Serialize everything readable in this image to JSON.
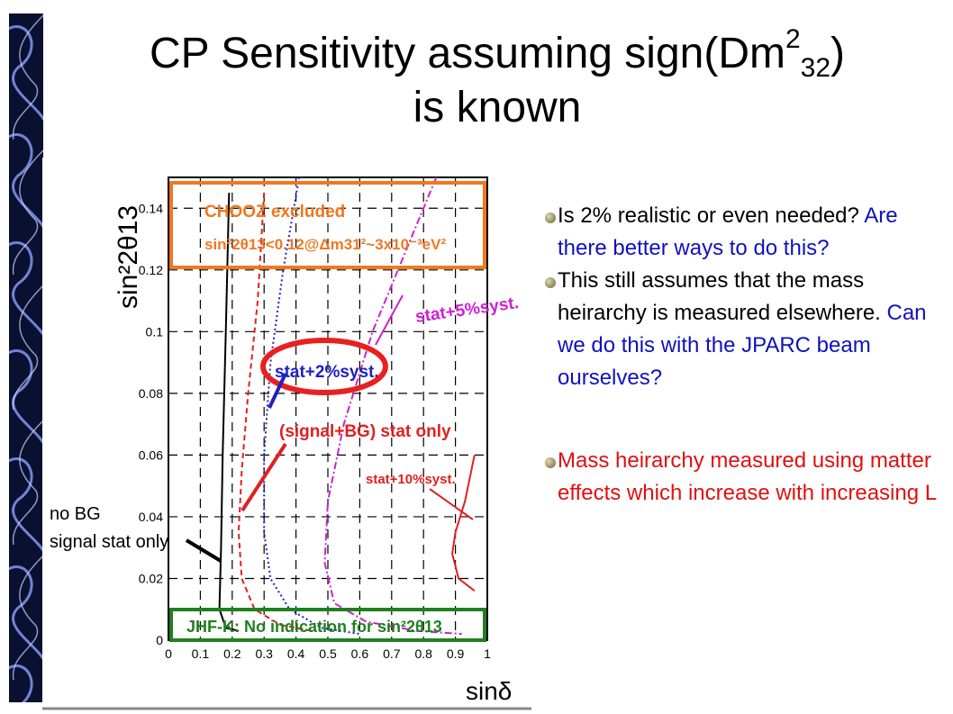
{
  "title": {
    "line1_main": "CP Sensitivity assuming sign(Dm",
    "sup": "2",
    "sub": "32",
    "close": ")",
    "line2": "is known"
  },
  "colors": {
    "strip": "#0a1030",
    "blue_text": "#1010c0",
    "red_text": "#e01010",
    "chooz_box": "#f07820",
    "jhf_box": "#208020"
  },
  "chart_data": {
    "type": "line",
    "xlabel": "sinδ",
    "ylabel": "sin²2θ13",
    "xlim": [
      0,
      1
    ],
    "ylim": [
      0,
      0.15
    ],
    "xticks": [
      "0",
      "0.1",
      "0.2",
      "0.3",
      "0.4",
      "0.5",
      "0.6",
      "0.7",
      "0.8",
      "0.9",
      "1"
    ],
    "yticks": [
      "0",
      "0.02",
      "0.04",
      "0.06",
      "0.08",
      "0.1",
      "0.12",
      "0.14"
    ],
    "grid": true,
    "annotations": {
      "chooz_line1": "CHOOZ excluded",
      "chooz_line2": "sin²2θ13<0.12@Δm31²~3x10⁻³eV²",
      "stat5": "stat+5%syst.",
      "stat2": "stat+2%syst.",
      "sigbg": "(signal+BG) stat only",
      "stat10": "stat+10%syst.",
      "nobg1": "no BG",
      "nobg2": "signal stat only",
      "jhf": "JHF-K: No indication for sin²2θ13"
    },
    "series": [
      {
        "name": "no BG signal stat only",
        "color": "#000000",
        "dash": "",
        "points": [
          [
            0.19,
            0.145
          ],
          [
            0.18,
            0.1
          ],
          [
            0.17,
            0.06
          ],
          [
            0.165,
            0.03
          ],
          [
            0.16,
            0.01
          ],
          [
            0.18,
            0.004
          ],
          [
            0.22,
            0.003
          ]
        ]
      },
      {
        "name": "(signal+BG) stat only",
        "color": "#e02020",
        "dash": "6,4",
        "points": [
          [
            0.3,
            0.145
          ],
          [
            0.28,
            0.11
          ],
          [
            0.25,
            0.08
          ],
          [
            0.23,
            0.055
          ],
          [
            0.22,
            0.035
          ],
          [
            0.23,
            0.02
          ],
          [
            0.27,
            0.01
          ],
          [
            0.35,
            0.005
          ],
          [
            0.45,
            0.003
          ]
        ]
      },
      {
        "name": "stat+2%syst.",
        "color": "#2020c0",
        "dash": "2,3",
        "points": [
          [
            0.41,
            0.15
          ],
          [
            0.36,
            0.12
          ],
          [
            0.32,
            0.09
          ],
          [
            0.3,
            0.06
          ],
          [
            0.3,
            0.035
          ],
          [
            0.32,
            0.02
          ],
          [
            0.38,
            0.01
          ],
          [
            0.48,
            0.004
          ],
          [
            0.6,
            0.002
          ]
        ]
      },
      {
        "name": "stat+5%syst.",
        "color": "#d020d0",
        "dash": "8,3,2,3",
        "points": [
          [
            0.84,
            0.15
          ],
          [
            0.76,
            0.13
          ],
          [
            0.64,
            0.1
          ],
          [
            0.55,
            0.07
          ],
          [
            0.5,
            0.045
          ],
          [
            0.49,
            0.025
          ],
          [
            0.52,
            0.012
          ],
          [
            0.62,
            0.006
          ],
          [
            0.78,
            0.003
          ],
          [
            0.92,
            0.002
          ]
        ]
      },
      {
        "name": "stat+10%syst.",
        "color": "#e02020",
        "dash": "",
        "points": [
          [
            0.96,
            0.06
          ],
          [
            0.93,
            0.045
          ],
          [
            0.9,
            0.035
          ],
          [
            0.89,
            0.028
          ],
          [
            0.91,
            0.02
          ],
          [
            0.96,
            0.016
          ]
        ]
      }
    ]
  },
  "bullets": [
    {
      "segments": [
        {
          "text": "Is 2% realistic or  even needed? ",
          "color": "black"
        },
        {
          "text": "Are there better ways to do this?",
          "color": "blue"
        }
      ]
    },
    {
      "segments": [
        {
          "text": "This still assumes that the mass heirarchy is measured elsewhere. ",
          "color": "black"
        },
        {
          "text": "Can we do this with the JPARC beam ourselves?",
          "color": "blue"
        }
      ]
    },
    {
      "segments": [
        {
          "text": "Mass heirarchy measured using matter effects which increase with increasing L",
          "color": "red"
        }
      ]
    }
  ]
}
